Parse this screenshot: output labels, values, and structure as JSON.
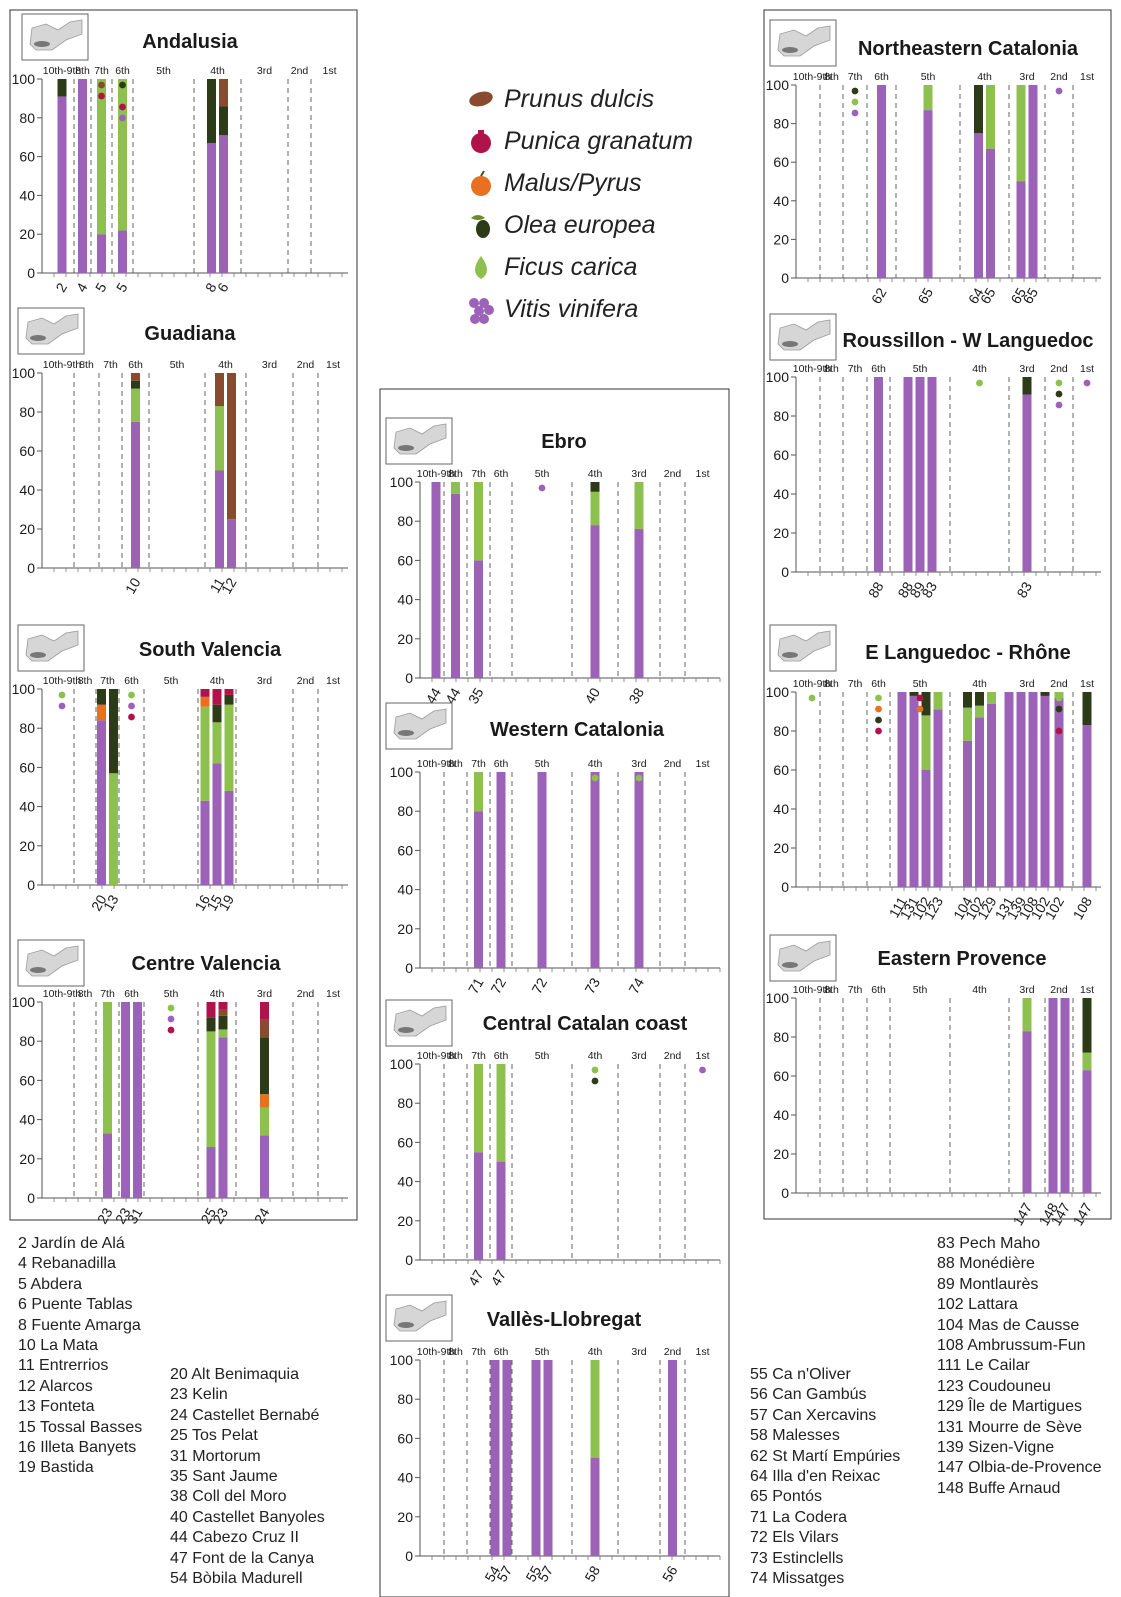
{
  "legend": [
    {
      "name": "almond-icon",
      "label": "Prunus dulcis",
      "color": "#8a4a30"
    },
    {
      "name": "pomegranate-icon",
      "label": "Punica granatum",
      "color": "#b0124a"
    },
    {
      "name": "apple-icon",
      "label": "Malus/Pyrus",
      "color": "#e8701e"
    },
    {
      "name": "olive-icon",
      "label": "Olea europea",
      "color": "#2d3b18"
    },
    {
      "name": "fig-icon",
      "label": "Ficus carica",
      "color": "#8dc04e"
    },
    {
      "name": "grape-icon",
      "label": "Vitis vinifera",
      "color": "#9b62b8"
    }
  ],
  "colors": {
    "vitis": "#9b62b8",
    "ficus": "#8dc04e",
    "olea": "#2d3b18",
    "malus": "#e8701e",
    "punica": "#b0124a",
    "prunus": "#8a4a30"
  },
  "chart_data": [
    {
      "type": "bar",
      "title": "Andalusia",
      "periods": [
        "10th-9th",
        "8th",
        "7th",
        "6th",
        "5th",
        "4th",
        "3rd",
        "2nd",
        "1st"
      ],
      "yticks": [
        0,
        20,
        40,
        60,
        80,
        100
      ],
      "ylim": [
        0,
        100
      ],
      "bars": [
        {
          "site": "2",
          "period": "10th-9th",
          "stack": {
            "vitis": 91,
            "olea": 9
          }
        },
        {
          "site": "4",
          "period": "8th",
          "stack": {
            "vitis": 100
          }
        },
        {
          "site": "5",
          "period": "7th",
          "stack": {
            "vitis": 20,
            "ficus": 80
          }
        },
        {
          "site": "5",
          "period": "6th",
          "stack": {
            "vitis": 22,
            "ficus": 78
          }
        },
        {
          "site": "8",
          "period": "4th",
          "stack": {
            "vitis": 67,
            "olea": 33
          }
        },
        {
          "site": "6",
          "period": "4th",
          "stack": {
            "vitis": 71,
            "olea": 15,
            "prunus": 14
          }
        }
      ],
      "dots": [
        {
          "period": "7th",
          "taxa": [
            "prunus",
            "punica"
          ]
        },
        {
          "period": "6th",
          "taxa": [
            "olea",
            "ficus",
            "punica",
            "vitis"
          ]
        }
      ]
    },
    {
      "type": "bar",
      "title": "Guadiana",
      "periods": [
        "10th-9th",
        "8th",
        "7th",
        "6th",
        "5th",
        "4th",
        "3rd",
        "2nd",
        "1st"
      ],
      "yticks": [
        0,
        20,
        40,
        60,
        80,
        100
      ],
      "ylim": [
        0,
        100
      ],
      "bars": [
        {
          "site": "10",
          "period": "6th",
          "stack": {
            "vitis": 75,
            "ficus": 17,
            "olea": 4,
            "prunus": 4
          }
        },
        {
          "site": "11",
          "period": "4th",
          "stack": {
            "vitis": 50,
            "ficus": 33,
            "prunus": 17
          }
        },
        {
          "site": "12",
          "period": "4th",
          "stack": {
            "vitis": 25,
            "prunus": 75
          }
        }
      ],
      "dots": []
    },
    {
      "type": "bar",
      "title": "South Valencia",
      "periods": [
        "10th-9th",
        "8th",
        "7th",
        "6th",
        "5th",
        "4th",
        "3rd",
        "2nd",
        "1st"
      ],
      "yticks": [
        0,
        20,
        40,
        60,
        80,
        100
      ],
      "ylim": [
        0,
        100
      ],
      "bars": [
        {
          "site": "20",
          "period": "7th",
          "stack": {
            "vitis": 84,
            "malus": 8,
            "olea": 8
          }
        },
        {
          "site": "13",
          "period": "7th",
          "stack": {
            "ficus": 57,
            "olea": 43
          }
        },
        {
          "site": "16",
          "period": "4th",
          "stack": {
            "vitis": 43,
            "ficus": 48,
            "malus": 5,
            "punica": 4
          }
        },
        {
          "site": "15",
          "period": "4th",
          "stack": {
            "vitis": 62,
            "ficus": 21,
            "olea": 9,
            "punica": 8
          }
        },
        {
          "site": "19",
          "period": "4th",
          "stack": {
            "vitis": 48,
            "ficus": 44,
            "olea": 5,
            "punica": 3
          }
        }
      ],
      "dots": [
        {
          "period": "10th-9th",
          "taxa": [
            "ficus",
            "vitis"
          ]
        },
        {
          "period": "6th",
          "taxa": [
            "ficus",
            "vitis",
            "punica"
          ]
        }
      ]
    },
    {
      "type": "bar",
      "title": "Centre Valencia",
      "periods": [
        "10th-9th",
        "8th",
        "7th",
        "6th",
        "5th",
        "4th",
        "3rd",
        "2nd",
        "1st"
      ],
      "yticks": [
        0,
        20,
        40,
        60,
        80,
        100
      ],
      "ylim": [
        0,
        100
      ],
      "bars": [
        {
          "site": "23",
          "period": "7th",
          "stack": {
            "vitis": 33,
            "ficus": 67
          }
        },
        {
          "site": "23",
          "period": "6th",
          "stack": {
            "vitis": 100
          }
        },
        {
          "site": "31",
          "period": "6th",
          "stack": {
            "vitis": 100
          }
        },
        {
          "site": "25",
          "period": "4th",
          "stack": {
            "vitis": 26,
            "ficus": 59,
            "olea": 7,
            "punica": 8
          }
        },
        {
          "site": "23",
          "period": "4th",
          "stack": {
            "vitis": 82,
            "ficus": 4,
            "olea": 7,
            "prunus": 3,
            "punica": 4
          }
        },
        {
          "site": "24",
          "period": "3rd",
          "stack": {
            "vitis": 32,
            "ficus": 14,
            "malus": 7,
            "olea": 29,
            "prunus": 9,
            "punica": 9
          }
        }
      ],
      "dots": [
        {
          "period": "5th",
          "taxa": [
            "ficus",
            "vitis",
            "punica"
          ]
        }
      ]
    },
    {
      "type": "bar",
      "title": "Ebro",
      "periods": [
        "10th-9th",
        "8th",
        "7th",
        "6th",
        "5th",
        "4th",
        "3rd",
        "2nd",
        "1st"
      ],
      "yticks": [
        0,
        20,
        40,
        60,
        80,
        100
      ],
      "ylim": [
        0,
        100
      ],
      "bars": [
        {
          "site": "44",
          "period": "10th-9th",
          "stack": {
            "vitis": 100
          }
        },
        {
          "site": "44",
          "period": "8th",
          "stack": {
            "vitis": 94,
            "ficus": 6
          }
        },
        {
          "site": "35",
          "period": "7th",
          "stack": {
            "vitis": 60,
            "ficus": 40
          }
        },
        {
          "site": "40",
          "period": "4th",
          "stack": {
            "vitis": 78,
            "ficus": 17,
            "olea": 5
          }
        },
        {
          "site": "38",
          "period": "3rd",
          "stack": {
            "vitis": 76,
            "ficus": 24
          }
        }
      ],
      "dots": [
        {
          "period": "8th",
          "taxa": [
            "ficus"
          ]
        },
        {
          "period": "5th",
          "taxa": [
            "vitis"
          ]
        }
      ]
    },
    {
      "type": "bar",
      "title": "Western Catalonia",
      "periods": [
        "10th-9th",
        "8th",
        "7th",
        "6th",
        "5th",
        "4th",
        "3rd",
        "2nd",
        "1st"
      ],
      "yticks": [
        0,
        20,
        40,
        60,
        80,
        100
      ],
      "ylim": [
        0,
        100
      ],
      "bars": [
        {
          "site": "71",
          "period": "7th",
          "stack": {
            "vitis": 80,
            "ficus": 20
          }
        },
        {
          "site": "72",
          "period": "6th",
          "stack": {
            "vitis": 100
          }
        },
        {
          "site": "72",
          "period": "5th",
          "stack": {
            "vitis": 100
          }
        },
        {
          "site": "73",
          "period": "4th",
          "stack": {
            "vitis": 100
          }
        },
        {
          "site": "74",
          "period": "3rd",
          "stack": {
            "vitis": 100
          }
        }
      ],
      "dots": [
        {
          "period": "4th",
          "taxa": [
            "ficus"
          ]
        },
        {
          "period": "3rd",
          "taxa": [
            "ficus"
          ]
        }
      ]
    },
    {
      "type": "bar",
      "title": "Central Catalan coast",
      "periods": [
        "10th-9th",
        "8th",
        "7th",
        "6th",
        "5th",
        "4th",
        "3rd",
        "2nd",
        "1st"
      ],
      "yticks": [
        0,
        20,
        40,
        60,
        80,
        100
      ],
      "ylim": [
        0,
        100
      ],
      "bars": [
        {
          "site": "47",
          "period": "7th",
          "stack": {
            "vitis": 55,
            "ficus": 45
          }
        },
        {
          "site": "47",
          "period": "6th",
          "stack": {
            "vitis": 50,
            "ficus": 50
          }
        }
      ],
      "dots": [
        {
          "period": "4th",
          "taxa": [
            "ficus",
            "olea"
          ]
        },
        {
          "period": "1st",
          "taxa": [
            "vitis"
          ]
        }
      ]
    },
    {
      "type": "bar",
      "title": "Vallès-Llobregat",
      "periods": [
        "10th-9th",
        "8th",
        "7th",
        "6th",
        "5th",
        "4th",
        "3rd",
        "2nd",
        "1st"
      ],
      "yticks": [
        0,
        20,
        40,
        60,
        80,
        100
      ],
      "ylim": [
        0,
        100
      ],
      "bars": [
        {
          "site": "54",
          "period": "6th",
          "stack": {
            "vitis": 100
          }
        },
        {
          "site": "57",
          "period": "6th",
          "stack": {
            "vitis": 100
          }
        },
        {
          "site": "55",
          "period": "5th",
          "stack": {
            "vitis": 100
          }
        },
        {
          "site": "57",
          "period": "5th",
          "stack": {
            "vitis": 100
          }
        },
        {
          "site": "58",
          "period": "4th",
          "stack": {
            "vitis": 50,
            "ficus": 50
          }
        },
        {
          "site": "56",
          "period": "2nd",
          "stack": {
            "vitis": 100
          }
        }
      ],
      "dots": []
    },
    {
      "type": "bar",
      "title": "Northeastern Catalonia",
      "periods": [
        "10th-9th",
        "8th",
        "7th",
        "6th",
        "5th",
        "4th",
        "3rd",
        "2nd",
        "1st"
      ],
      "yticks": [
        0,
        20,
        40,
        60,
        80,
        100
      ],
      "ylim": [
        0,
        100
      ],
      "bars": [
        {
          "site": "62",
          "period": "6th",
          "stack": {
            "vitis": 100
          }
        },
        {
          "site": "65",
          "period": "5th",
          "stack": {
            "vitis": 87,
            "ficus": 13
          }
        },
        {
          "site": "64",
          "period": "4th",
          "stack": {
            "vitis": 75,
            "olea": 25
          }
        },
        {
          "site": "65",
          "period": "4th",
          "stack": {
            "vitis": 67,
            "ficus": 33
          }
        },
        {
          "site": "65",
          "period": "3rd",
          "stack": {
            "vitis": 50,
            "ficus": 50
          }
        },
        {
          "site": "65",
          "period": "3rd",
          "stack": {
            "vitis": 100
          }
        }
      ],
      "dots": [
        {
          "period": "7th",
          "taxa": [
            "olea",
            "ficus",
            "vitis"
          ]
        },
        {
          "period": "2nd",
          "taxa": [
            "vitis"
          ]
        }
      ]
    },
    {
      "type": "bar",
      "title": "Roussillon - W Languedoc",
      "periods": [
        "10th-9th",
        "8th",
        "7th",
        "6th",
        "5th",
        "4th",
        "3rd",
        "2nd",
        "1st"
      ],
      "yticks": [
        0,
        20,
        40,
        60,
        80,
        100
      ],
      "ylim": [
        0,
        100
      ],
      "bars": [
        {
          "site": "88",
          "period": "6th",
          "stack": {
            "vitis": 100
          }
        },
        {
          "site": "88",
          "period": "5th",
          "stack": {
            "vitis": 100
          }
        },
        {
          "site": "89",
          "period": "5th",
          "stack": {
            "vitis": 100
          }
        },
        {
          "site": "83",
          "period": "5th",
          "stack": {
            "vitis": 100
          }
        },
        {
          "site": "83",
          "period": "3rd",
          "stack": {
            "vitis": 91,
            "olea": 9
          }
        }
      ],
      "dots": [
        {
          "period": "4th",
          "taxa": [
            "ficus"
          ]
        },
        {
          "period": "2nd",
          "taxa": [
            "ficus",
            "olea",
            "vitis"
          ]
        },
        {
          "period": "1st",
          "taxa": [
            "vitis"
          ]
        }
      ]
    },
    {
      "type": "bar",
      "title": "E Languedoc - Rhône",
      "periods": [
        "10th-9th",
        "8th",
        "7th",
        "6th",
        "5th",
        "4th",
        "3rd",
        "2nd",
        "1st"
      ],
      "yticks": [
        0,
        20,
        40,
        60,
        80,
        100
      ],
      "ylim": [
        0,
        100
      ],
      "bars": [
        {
          "site": "111",
          "period": "5th",
          "stack": {
            "vitis": 100
          }
        },
        {
          "site": "131",
          "period": "5th",
          "stack": {
            "vitis": 98,
            "olea": 2
          }
        },
        {
          "site": "102",
          "period": "5th",
          "stack": {
            "vitis": 60,
            "ficus": 28,
            "olea": 12
          }
        },
        {
          "site": "123",
          "period": "5th",
          "stack": {
            "vitis": 91,
            "ficus": 9
          }
        },
        {
          "site": "104",
          "period": "4th",
          "stack": {
            "vitis": 75,
            "ficus": 17,
            "olea": 8
          }
        },
        {
          "site": "102",
          "period": "4th",
          "stack": {
            "vitis": 87,
            "ficus": 6,
            "olea": 7
          }
        },
        {
          "site": "129",
          "period": "4th",
          "stack": {
            "vitis": 94,
            "ficus": 6
          }
        },
        {
          "site": "131",
          "period": "3rd",
          "stack": {
            "vitis": 100
          }
        },
        {
          "site": "139",
          "period": "3rd",
          "stack": {
            "vitis": 100
          }
        },
        {
          "site": "108",
          "period": "3rd",
          "stack": {
            "vitis": 100
          }
        },
        {
          "site": "102",
          "period": "3rd",
          "stack": {
            "vitis": 98,
            "olea": 2
          }
        },
        {
          "site": "102",
          "period": "2nd",
          "stack": {
            "vitis": 97,
            "ficus": 3
          }
        },
        {
          "site": "108",
          "period": "1st",
          "stack": {
            "vitis": 83,
            "olea": 17
          }
        }
      ],
      "dots": [
        {
          "period": "10th-9th",
          "taxa": [
            "ficus"
          ]
        },
        {
          "period": "6th",
          "taxa": [
            "ficus",
            "malus",
            "olea",
            "punica"
          ]
        },
        {
          "period": "5th",
          "taxa": [
            "punica",
            "malus"
          ]
        },
        {
          "period": "2nd",
          "taxa": [
            "ficus",
            "olea",
            "vitis",
            "punica"
          ]
        }
      ]
    },
    {
      "type": "bar",
      "title": "Eastern Provence",
      "periods": [
        "10th-9th",
        "8th",
        "7th",
        "6th",
        "5th",
        "4th",
        "3rd",
        "2nd",
        "1st"
      ],
      "yticks": [
        0,
        20,
        40,
        60,
        80,
        100
      ],
      "ylim": [
        0,
        100
      ],
      "bars": [
        {
          "site": "147",
          "period": "3rd",
          "stack": {
            "vitis": 83,
            "ficus": 17
          }
        },
        {
          "site": "148",
          "period": "2nd",
          "stack": {
            "vitis": 100
          }
        },
        {
          "site": "147",
          "period": "2nd",
          "stack": {
            "vitis": 100
          }
        },
        {
          "site": "147",
          "period": "1st",
          "stack": {
            "vitis": 63,
            "ficus": 9,
            "olea": 28
          }
        }
      ],
      "dots": []
    }
  ],
  "sites_left": [
    "2 Jardín de Alá",
    "4 Rebanadilla",
    "5 Abdera",
    "6 Puente Tablas",
    "8 Fuente Amarga",
    "10 La Mata",
    "11 Entrerrios",
    "12 Alarcos",
    "13 Fonteta",
    "15 Tossal Basses",
    "16 Illeta Banyets",
    "19 Bastida"
  ],
  "sites_mid": [
    "20 Alt Benimaquia",
    "23 Kelin",
    "24 Castellet Bernabé",
    "25 Tos Pelat",
    "31 Mortorum",
    "35 Sant Jaume",
    "38 Coll del Moro",
    "40 Castellet Banyoles",
    "44 Cabezo Cruz II",
    "47 Font de la Canya",
    "54 Bòbila Madurell"
  ],
  "sites_right1": [
    "55 Ca n'Oliver",
    "56 Can Gambús",
    "57 Can Xercavins",
    "58 Malesses",
    "62 St Martí Empúries",
    "64 Illa d'en Reixac",
    "65 Pontós",
    "71 La Codera",
    "72 Els Vilars",
    "73 Estinclells",
    "74 Missatges"
  ],
  "sites_right2": [
    "83 Pech Maho",
    "88 Monédière",
    "89 Montlaurès",
    "102 Lattara",
    "104 Mas de Causse",
    "108 Ambrussum-Fun",
    "111 Le Cailar",
    "123 Coudouneu",
    "129 Île de Martigues",
    "131 Mourre de Sève",
    "139 Sizen-Vigne",
    "147 Olbia-de-Provence",
    "148 Buffe Arnaud"
  ]
}
